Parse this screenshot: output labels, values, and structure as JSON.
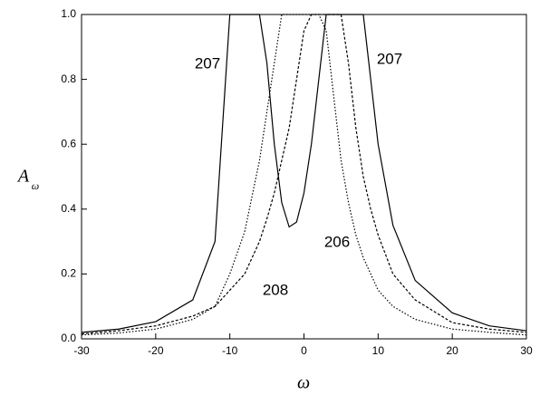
{
  "chart_data": {
    "type": "line",
    "x_label": "ω",
    "y_label": "A",
    "y_label_subscript": "ω",
    "x": [
      -30,
      -25,
      -20,
      -15,
      -12,
      -10,
      -8,
      -6,
      -5,
      -4,
      -3,
      -2,
      -1,
      0,
      1,
      2,
      3,
      4,
      5,
      6,
      7,
      8,
      9,
      10,
      12,
      15,
      20,
      25,
      30
    ],
    "series": [
      {
        "color": "#000000",
        "dash": "solid",
        "values": [
          0.02,
          0.03,
          0.053,
          0.12,
          0.3,
          1,
          1,
          1,
          0.85,
          0.6,
          0.42,
          0.345,
          0.36,
          0.45,
          0.6,
          0.8,
          1,
          1,
          1,
          1,
          1,
          1,
          0.8,
          0.6,
          0.35,
          0.18,
          0.08,
          0.04,
          0.025
        ]
      },
      {
        "color": "#000000",
        "dash": "dotted",
        "values": [
          0.012,
          0.018,
          0.03,
          0.06,
          0.1,
          0.2,
          0.33,
          0.55,
          0.7,
          0.85,
          1,
          1,
          1,
          1,
          1,
          1,
          0.95,
          0.75,
          0.55,
          0.42,
          0.32,
          0.25,
          0.2,
          0.15,
          0.1,
          0.06,
          0.03,
          0.02,
          0.012
        ]
      },
      {
        "color": "#000000",
        "dash": "dashed",
        "values": [
          0.015,
          0.025,
          0.04,
          0.07,
          0.1,
          0.15,
          0.2,
          0.3,
          0.37,
          0.45,
          0.55,
          0.65,
          0.8,
          0.95,
          1,
          1,
          1,
          1,
          1,
          0.85,
          0.65,
          0.5,
          0.4,
          0.32,
          0.2,
          0.12,
          0.05,
          0.03,
          0.02
        ]
      }
    ],
    "annotations": [
      "207",
      "207",
      "206",
      "208"
    ],
    "xlim": [
      -30,
      30
    ],
    "xticks": [
      -30,
      -20,
      -10,
      0,
      10,
      20,
      30
    ],
    "ylim": [
      0,
      1
    ],
    "yticks": [
      {
        "value": 0,
        "label": "0.0"
      },
      0.2,
      0.4,
      0.6,
      0.8,
      {
        "value": 1,
        "label": "1.0"
      }
    ],
    "grid": false
  }
}
